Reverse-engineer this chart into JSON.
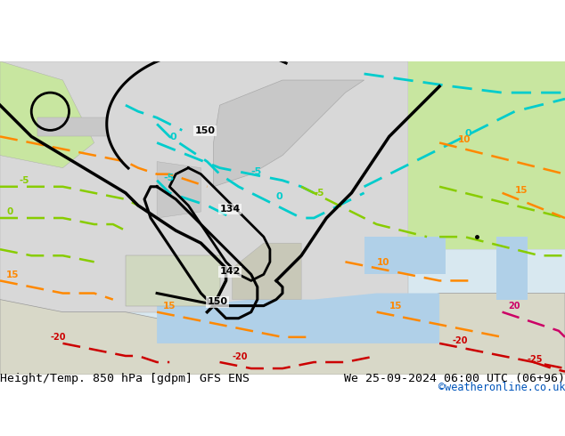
{
  "title_left": "Height/Temp. 850 hPa [gdpm] GFS ENS",
  "title_right": "We 25-09-2024 06:00 UTC (06+96)",
  "credit": "©weatheronline.co.uk",
  "background_color": "#f0f0f0",
  "land_color_light": "#c8e6a0",
  "land_color_mid": "#b8d890",
  "land_color_cold": "#d8d8d8",
  "sea_color": "#e8f4f8",
  "font_color": "#000000",
  "title_fontsize": 9.5,
  "credit_fontsize": 8,
  "credit_color": "#0066cc"
}
